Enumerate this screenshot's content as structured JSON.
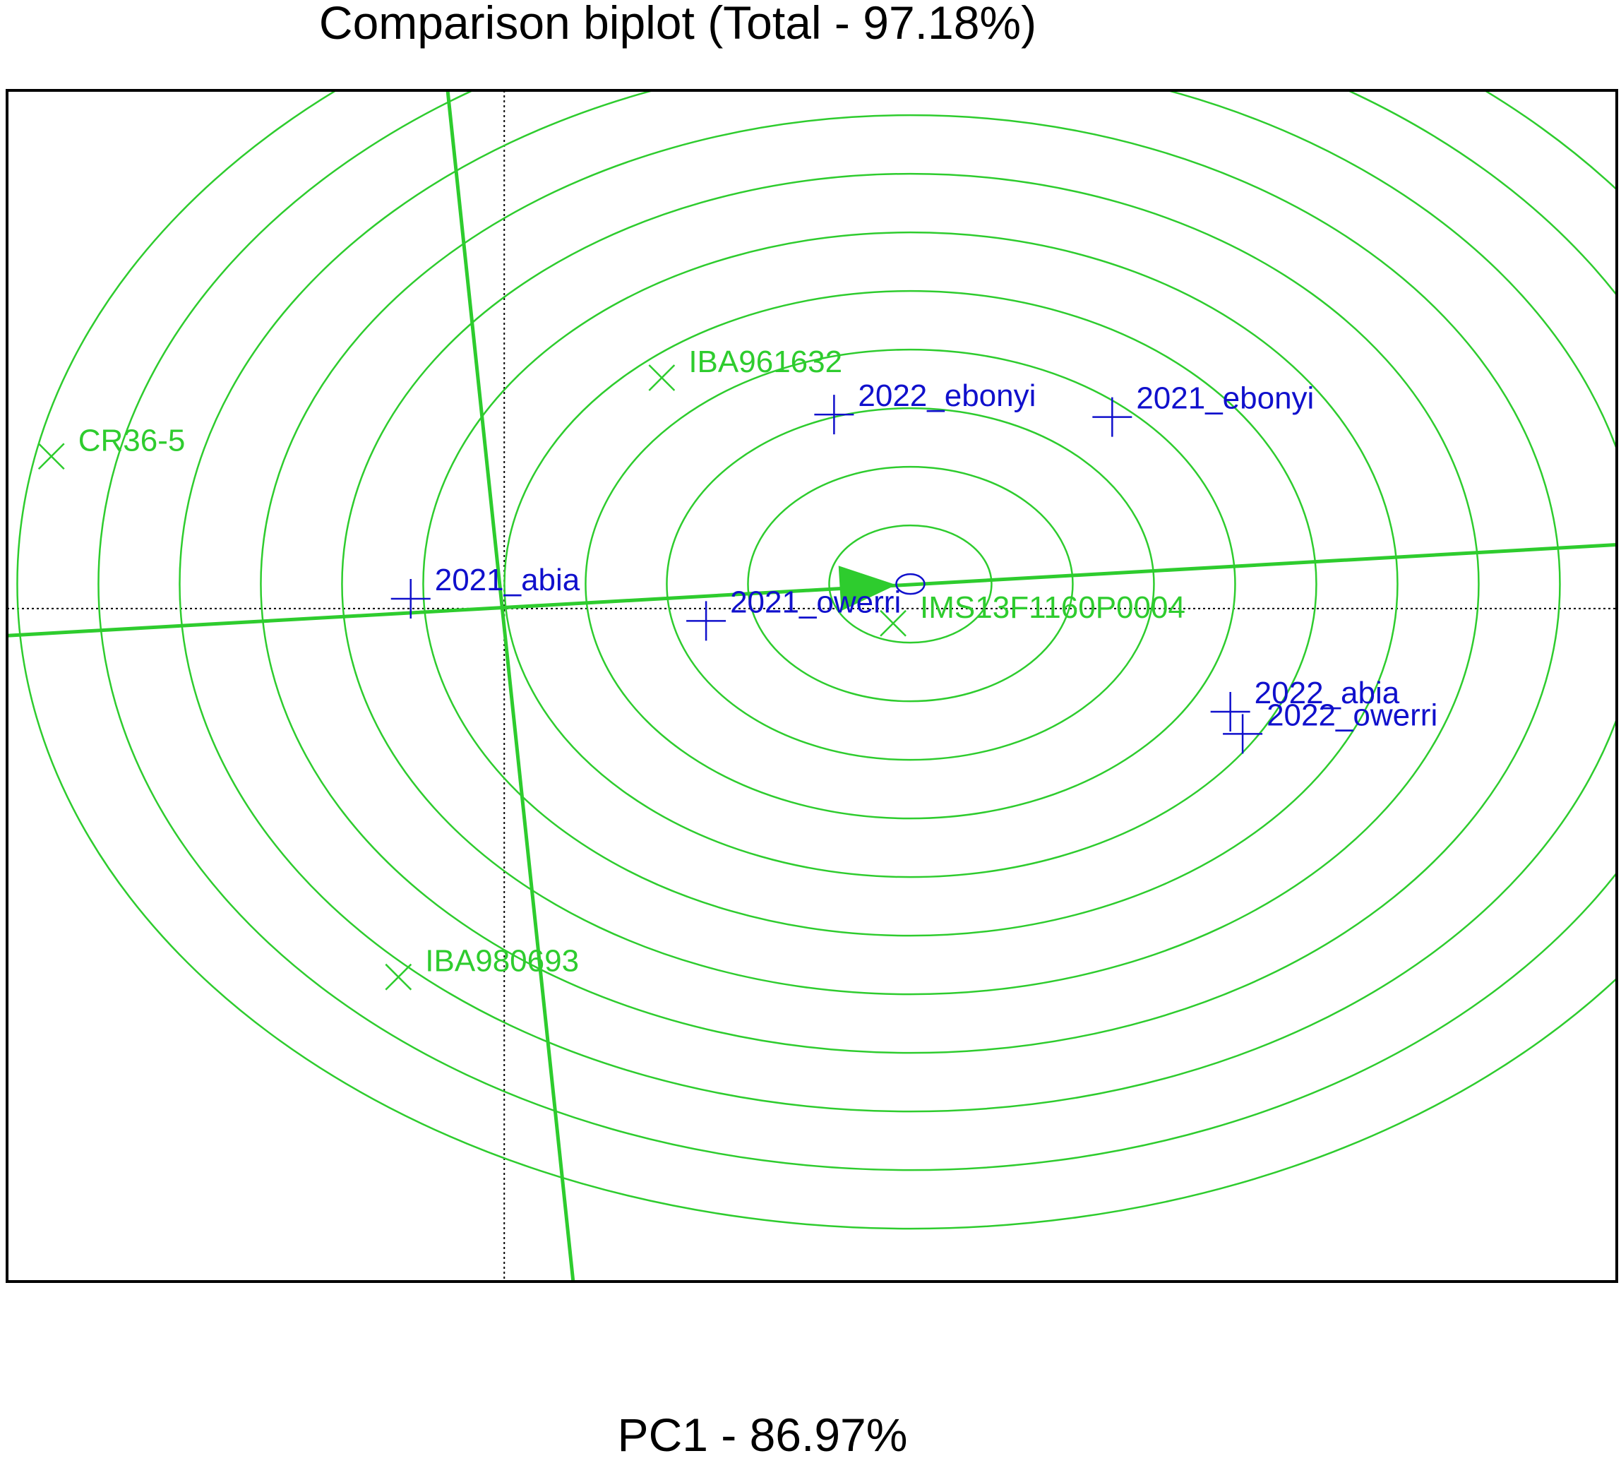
{
  "chart_data": {
    "type": "scatter",
    "title": "Comparison biplot (Total - 97.18%)",
    "xlabel": "PC1 - 86.97%",
    "ylabel": "",
    "xlim": [
      -2.02,
      4.52
    ],
    "ylim": [
      -2.74,
      2.11
    ],
    "grid": false,
    "colors": {
      "genotype": "#2ecc2e",
      "environment": "#1010cc",
      "frame": "#000000",
      "reference_lines": "#000000"
    },
    "origin": {
      "x": 0,
      "y": 0
    },
    "ideal_genotype": {
      "x": 1.65,
      "y": 0.1
    },
    "average_axis": {
      "points": [
        [
          -2.02,
          -0.11
        ],
        [
          4.52,
          0.26
        ]
      ]
    },
    "perpendicular_axis": {
      "points": [
        [
          -0.23,
          2.11
        ],
        [
          0.28,
          -2.74
        ]
      ]
    },
    "concentric_circle_count": 11,
    "genotypes": [
      {
        "name": "IBA961632",
        "x": 0.64,
        "y": 0.94
      },
      {
        "name": "CR36-5",
        "x": -1.84,
        "y": 0.62
      },
      {
        "name": "IMS13F1160P0004",
        "x": 1.58,
        "y": -0.06
      },
      {
        "name": "IBA980693",
        "x": -0.43,
        "y": -1.5
      }
    ],
    "environments": [
      {
        "name": "2022_ebonyi",
        "x": 1.34,
        "y": 0.79
      },
      {
        "name": "2021_ebonyi",
        "x": 2.47,
        "y": 0.78
      },
      {
        "name": "2021_abia",
        "x": -0.38,
        "y": 0.04
      },
      {
        "name": "2021_owerri",
        "x": 0.82,
        "y": -0.05
      },
      {
        "name": "2022_abia",
        "x": 2.95,
        "y": -0.42
      },
      {
        "name": "2022_owerri",
        "x": 3.0,
        "y": -0.51
      }
    ]
  }
}
